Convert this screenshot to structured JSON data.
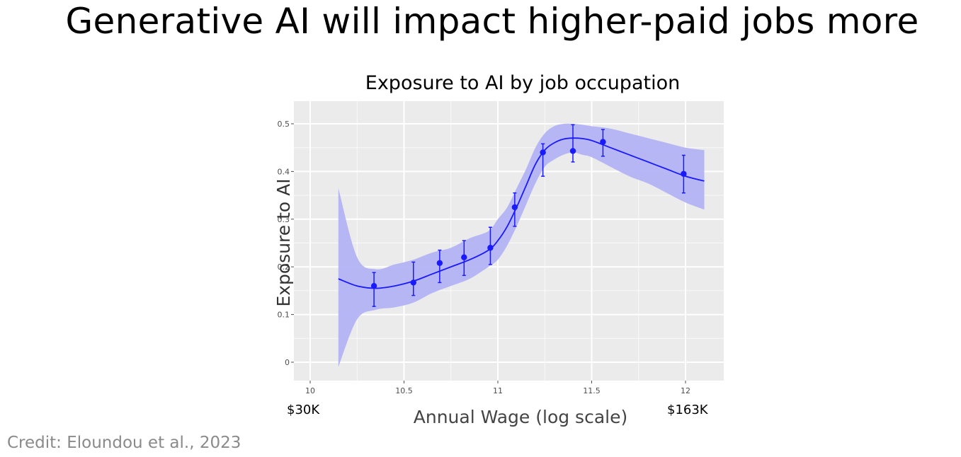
{
  "slide": {
    "title": "Generative AI will impact higher-paid jobs more",
    "credit": "Credit: Eloundou et al., 2023"
  },
  "annotations": {
    "low_wage": "$30K",
    "high_wage": "$163K"
  },
  "colors": {
    "panel_background": "#ebebeb",
    "gridline": "#ffffff",
    "series": "#1a1aff",
    "ribbon": "#b3b3f5"
  },
  "chart_data": {
    "type": "line",
    "title": "Exposure to AI by job occupation",
    "xlabel": "Annual Wage (log scale)",
    "ylabel": "Exposure to AI",
    "xlim": [
      10,
      12.2
    ],
    "ylim": [
      -0.04,
      0.55
    ],
    "x_scale": "log wage",
    "grid": true,
    "x_ticks": [
      10,
      10.5,
      11,
      11.5,
      12
    ],
    "x_tick_labels": [
      "10",
      "10.5",
      "11",
      "11.5",
      "12"
    ],
    "y_ticks": [
      0,
      0.1,
      0.2,
      0.3,
      0.4,
      0.5
    ],
    "y_tick_labels": [
      "0",
      "0.1",
      "0.2",
      "0.3",
      "0.4",
      "0.5"
    ],
    "smooth_fit": {
      "x": [
        10.15,
        10.25,
        10.35,
        10.45,
        10.55,
        10.65,
        10.75,
        10.85,
        10.95,
        11.0,
        11.05,
        11.1,
        11.15,
        11.2,
        11.25,
        11.3,
        11.35,
        11.4,
        11.45,
        11.5,
        11.6,
        11.7,
        11.8,
        11.9,
        12.0,
        12.1
      ],
      "y": [
        0.175,
        0.16,
        0.155,
        0.16,
        0.17,
        0.185,
        0.2,
        0.215,
        0.235,
        0.255,
        0.285,
        0.325,
        0.37,
        0.415,
        0.445,
        0.46,
        0.468,
        0.47,
        0.469,
        0.465,
        0.45,
        0.435,
        0.42,
        0.405,
        0.39,
        0.38
      ],
      "lower": [
        -0.01,
        0.09,
        0.11,
        0.115,
        0.125,
        0.145,
        0.16,
        0.175,
        0.2,
        0.215,
        0.245,
        0.285,
        0.33,
        0.375,
        0.41,
        0.425,
        0.435,
        0.44,
        0.435,
        0.43,
        0.41,
        0.39,
        0.375,
        0.355,
        0.335,
        0.32
      ],
      "upper": [
        0.365,
        0.22,
        0.195,
        0.205,
        0.215,
        0.23,
        0.24,
        0.26,
        0.275,
        0.3,
        0.325,
        0.365,
        0.405,
        0.45,
        0.48,
        0.495,
        0.5,
        0.5,
        0.498,
        0.495,
        0.49,
        0.48,
        0.47,
        0.46,
        0.45,
        0.445
      ]
    },
    "points": {
      "x": [
        10.34,
        10.55,
        10.69,
        10.82,
        10.96,
        11.09,
        11.24,
        11.4,
        11.56,
        11.99
      ],
      "y": [
        0.16,
        0.167,
        0.208,
        0.22,
        0.24,
        0.325,
        0.44,
        0.443,
        0.462,
        0.395
      ],
      "lower": [
        0.117,
        0.14,
        0.167,
        0.182,
        0.205,
        0.285,
        0.39,
        0.42,
        0.432,
        0.355
      ],
      "upper": [
        0.188,
        0.21,
        0.235,
        0.255,
        0.283,
        0.355,
        0.458,
        0.498,
        0.488,
        0.434
      ]
    }
  }
}
